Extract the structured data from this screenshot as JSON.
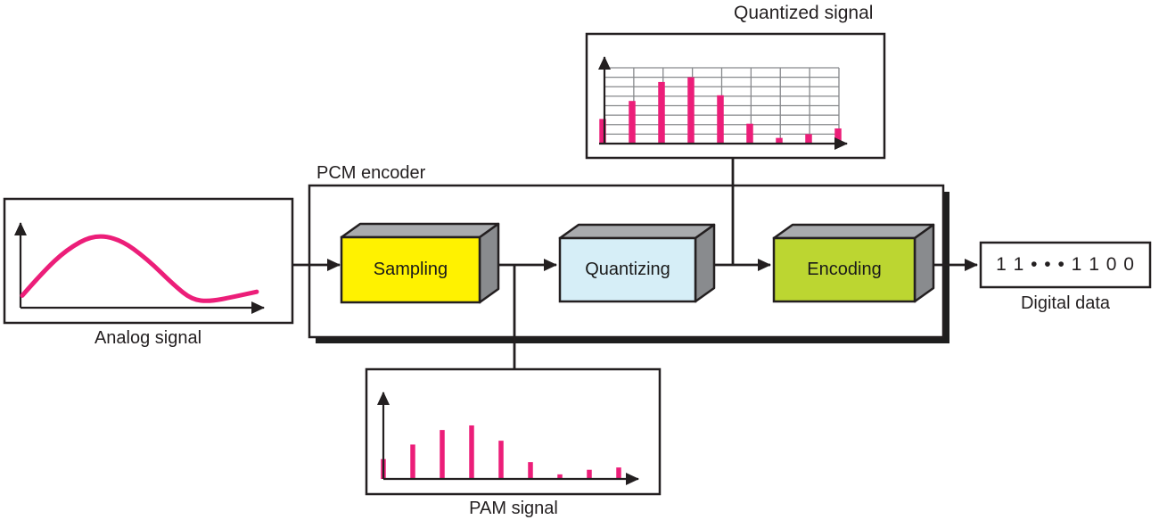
{
  "diagram": {
    "pcm_encoder_label": "PCM encoder",
    "digital": {
      "value": "1 1 • • • 1 1 0 0",
      "label": "Digital data"
    },
    "blocks": [
      {
        "label": "Sampling",
        "color": "#FFF200"
      },
      {
        "label": "Quantizing",
        "color": "#D6EEF7"
      },
      {
        "label": "Encoding",
        "color": "#BCD631"
      }
    ],
    "colors": {
      "signal": "#EC1E79",
      "outline": "#231F20",
      "block_top": "#A9ABAE",
      "block_side": "#898B8E",
      "grid": "#87898C",
      "shadow": "#1E1E1E"
    }
  },
  "chart_data": [
    {
      "type": "line",
      "title": "Analog signal",
      "color": "#EC1E79",
      "axis_labels": "none (bare arrow axes)",
      "points_norm": [
        [
          0.007,
          0.13
        ],
        [
          0.087,
          0.38
        ],
        [
          0.18,
          0.62
        ],
        [
          0.286,
          0.78
        ],
        [
          0.39,
          0.73
        ],
        [
          0.495,
          0.52
        ],
        [
          0.6,
          0.24
        ],
        [
          0.67,
          0.086
        ],
        [
          0.74,
          0.067
        ],
        [
          0.83,
          0.114
        ],
        [
          0.923,
          0.17
        ]
      ]
    },
    {
      "type": "bar",
      "title": "Quantized signal",
      "color": "#EC1E79",
      "values": [
        2.6,
        4.5,
        6.5,
        7.0,
        5.1,
        2.1,
        0.6,
        1.0,
        1.6
      ],
      "ylim": [
        0,
        8
      ],
      "grid": true,
      "grid_rows": 8,
      "grid_cols": 8
    },
    {
      "type": "bar",
      "title": "PAM signal",
      "color": "#EC1E79",
      "values": [
        2.6,
        4.5,
        6.4,
        7.0,
        5.0,
        2.2,
        0.6,
        1.2,
        1.5
      ],
      "ylim": [
        0,
        8
      ],
      "grid": false
    }
  ]
}
